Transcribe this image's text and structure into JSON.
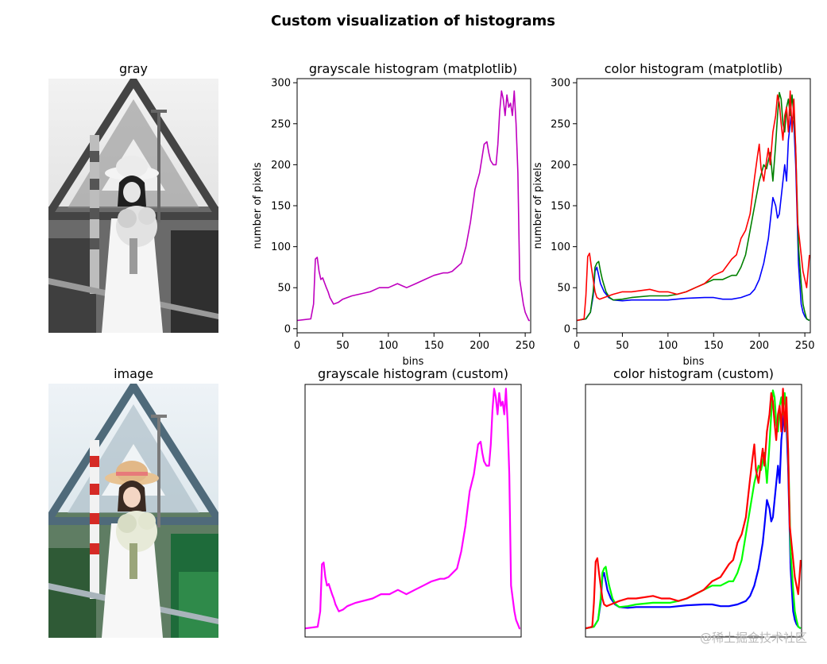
{
  "figure": {
    "suptitle": "Custom visualization of histograms",
    "watermark": "@稀土掘金技术社区"
  },
  "colors": {
    "gray_hist": "#bf00bf",
    "gray_hist_custom": "#ff00ff",
    "blue": "#0000ff",
    "green_mpl": "#008000",
    "green_custom": "#00ff00",
    "red": "#ff0000"
  },
  "panels": {
    "gray_image": {
      "title": "gray"
    },
    "color_image": {
      "title": "image"
    },
    "gray_hist": {
      "title": "grayscale histogram (matplotlib)"
    },
    "color_hist": {
      "title": "color histogram (matplotlib)"
    },
    "gray_hist_custom": {
      "title": "grayscale histogram (custom)"
    },
    "color_hist_custom": {
      "title": "color histogram (custom)"
    }
  },
  "chart_data": [
    {
      "type": "line",
      "title": "grayscale histogram (matplotlib)",
      "xlabel": "bins",
      "ylabel": "number of pixels",
      "xlim": [
        0,
        256
      ],
      "ylim": [
        -5,
        305
      ],
      "xticks": [
        0,
        50,
        100,
        150,
        200,
        250
      ],
      "yticks": [
        0,
        50,
        100,
        150,
        200,
        250,
        300
      ],
      "grid": false,
      "series": [
        {
          "color": "#bf00bf",
          "x": [
            0,
            15,
            18,
            20,
            22,
            24,
            26,
            28,
            30,
            32,
            34,
            36,
            40,
            45,
            50,
            60,
            80,
            90,
            100,
            110,
            120,
            130,
            140,
            150,
            160,
            165,
            170,
            175,
            180,
            185,
            190,
            195,
            200,
            205,
            208,
            210,
            212,
            215,
            218,
            220,
            222,
            224,
            226,
            228,
            230,
            232,
            234,
            236,
            238,
            240,
            242,
            244,
            246,
            248,
            250,
            252,
            254,
            255
          ],
          "y": [
            10,
            12,
            30,
            85,
            87,
            70,
            60,
            62,
            56,
            50,
            45,
            38,
            30,
            32,
            36,
            40,
            45,
            50,
            50,
            55,
            50,
            55,
            60,
            65,
            68,
            68,
            70,
            75,
            80,
            100,
            130,
            170,
            190,
            225,
            228,
            215,
            205,
            200,
            200,
            225,
            265,
            290,
            280,
            260,
            285,
            270,
            275,
            260,
            290,
            250,
            190,
            60,
            45,
            30,
            20,
            15,
            10,
            10
          ]
        }
      ]
    },
    {
      "type": "line",
      "title": "color histogram (matplotlib)",
      "xlabel": "bins",
      "ylabel": "number of pixels",
      "xlim": [
        0,
        256
      ],
      "ylim": [
        -5,
        305
      ],
      "xticks": [
        0,
        50,
        100,
        150,
        200,
        250
      ],
      "yticks": [
        0,
        50,
        100,
        150,
        200,
        250,
        300
      ],
      "grid": false,
      "series": [
        {
          "color": "#0000ff",
          "x": [
            0,
            10,
            15,
            18,
            20,
            22,
            24,
            26,
            30,
            35,
            40,
            50,
            60,
            80,
            100,
            120,
            140,
            150,
            160,
            170,
            180,
            190,
            195,
            200,
            205,
            210,
            212,
            215,
            218,
            220,
            222,
            225,
            228,
            230,
            232,
            235,
            238,
            240,
            243,
            246,
            248,
            250,
            252,
            255
          ],
          "y": [
            10,
            12,
            20,
            40,
            70,
            75,
            65,
            55,
            45,
            38,
            35,
            34,
            35,
            35,
            35,
            37,
            38,
            38,
            36,
            36,
            38,
            42,
            48,
            60,
            80,
            110,
            130,
            160,
            150,
            135,
            140,
            170,
            200,
            180,
            230,
            260,
            250,
            200,
            80,
            30,
            20,
            15,
            12,
            10
          ]
        },
        {
          "color": "#008000",
          "x": [
            0,
            10,
            15,
            18,
            20,
            22,
            24,
            26,
            28,
            32,
            36,
            40,
            50,
            60,
            80,
            100,
            110,
            120,
            130,
            140,
            150,
            160,
            170,
            175,
            180,
            185,
            190,
            195,
            200,
            205,
            208,
            210,
            212,
            215,
            218,
            220,
            222,
            224,
            226,
            228,
            230,
            232,
            234,
            236,
            238,
            240,
            243,
            246,
            248,
            250,
            252,
            255
          ],
          "y": [
            10,
            12,
            20,
            45,
            75,
            80,
            82,
            70,
            60,
            45,
            38,
            35,
            36,
            38,
            40,
            40,
            42,
            45,
            50,
            55,
            60,
            60,
            65,
            65,
            75,
            90,
            120,
            150,
            180,
            200,
            195,
            205,
            215,
            180,
            225,
            260,
            288,
            280,
            250,
            240,
            270,
            280,
            260,
            285,
            260,
            220,
            100,
            55,
            30,
            20,
            12,
            10
          ]
        },
        {
          "color": "#ff0000",
          "x": [
            0,
            8,
            10,
            12,
            14,
            16,
            18,
            20,
            22,
            25,
            30,
            35,
            40,
            50,
            60,
            80,
            90,
            100,
            110,
            120,
            130,
            140,
            150,
            160,
            170,
            175,
            180,
            185,
            190,
            195,
            198,
            200,
            202,
            205,
            208,
            210,
            212,
            215,
            218,
            220,
            222,
            224,
            226,
            228,
            230,
            232,
            234,
            236,
            238,
            240,
            242,
            245,
            248,
            250,
            252,
            255
          ],
          "y": [
            10,
            12,
            40,
            88,
            92,
            75,
            60,
            45,
            38,
            36,
            38,
            40,
            42,
            45,
            45,
            48,
            45,
            45,
            42,
            45,
            50,
            55,
            65,
            70,
            85,
            90,
            110,
            120,
            140,
            185,
            210,
            225,
            195,
            180,
            205,
            220,
            200,
            240,
            260,
            285,
            275,
            250,
            230,
            260,
            270,
            240,
            290,
            240,
            280,
            220,
            130,
            100,
            70,
            60,
            50,
            90
          ]
        }
      ]
    },
    {
      "type": "line",
      "title": "grayscale histogram (custom)",
      "xlim": [
        0,
        256
      ],
      "ylim": [
        0,
        295
      ],
      "grid": false,
      "series": [
        {
          "color": "#ff00ff",
          "x": [
            0,
            15,
            18,
            20,
            22,
            24,
            26,
            28,
            30,
            32,
            34,
            36,
            40,
            45,
            50,
            60,
            80,
            90,
            100,
            110,
            120,
            130,
            140,
            150,
            160,
            165,
            170,
            175,
            180,
            185,
            190,
            195,
            200,
            205,
            208,
            210,
            212,
            215,
            218,
            220,
            222,
            224,
            226,
            228,
            230,
            232,
            234,
            236,
            238,
            240,
            242,
            244,
            246,
            248,
            250,
            252,
            254,
            255
          ],
          "y": [
            10,
            12,
            30,
            85,
            87,
            70,
            60,
            62,
            56,
            50,
            45,
            38,
            30,
            32,
            36,
            40,
            45,
            50,
            50,
            55,
            50,
            55,
            60,
            65,
            68,
            68,
            70,
            75,
            80,
            100,
            130,
            170,
            190,
            225,
            228,
            215,
            205,
            200,
            200,
            225,
            265,
            290,
            280,
            260,
            285,
            270,
            275,
            260,
            290,
            250,
            190,
            60,
            45,
            30,
            20,
            15,
            10,
            10
          ]
        }
      ]
    },
    {
      "type": "line",
      "title": "color histogram (custom)",
      "xlim": [
        0,
        256
      ],
      "ylim": [
        0,
        295
      ],
      "grid": false,
      "series": [
        {
          "color": "#0000ff",
          "x": [
            0,
            10,
            15,
            18,
            20,
            22,
            24,
            26,
            30,
            35,
            40,
            50,
            60,
            80,
            100,
            120,
            140,
            150,
            160,
            170,
            180,
            190,
            195,
            200,
            205,
            210,
            212,
            215,
            218,
            220,
            222,
            225,
            228,
            230,
            232,
            235,
            238,
            240,
            243,
            246,
            248,
            250,
            252,
            255
          ],
          "y": [
            10,
            12,
            20,
            40,
            70,
            75,
            65,
            55,
            45,
            38,
            35,
            34,
            35,
            35,
            35,
            37,
            38,
            38,
            36,
            36,
            38,
            42,
            48,
            60,
            80,
            110,
            130,
            160,
            150,
            135,
            140,
            170,
            200,
            180,
            230,
            260,
            250,
            200,
            80,
            30,
            20,
            15,
            12,
            10
          ]
        },
        {
          "color": "#00ff00",
          "x": [
            0,
            10,
            15,
            18,
            20,
            22,
            24,
            26,
            28,
            32,
            36,
            40,
            50,
            60,
            80,
            100,
            110,
            120,
            130,
            140,
            150,
            160,
            170,
            175,
            180,
            185,
            190,
            195,
            200,
            205,
            208,
            210,
            212,
            215,
            218,
            220,
            222,
            224,
            226,
            228,
            230,
            232,
            234,
            236,
            238,
            240,
            243,
            246,
            248,
            250,
            252,
            255
          ],
          "y": [
            10,
            12,
            20,
            45,
            75,
            80,
            82,
            70,
            60,
            45,
            38,
            35,
            36,
            38,
            40,
            40,
            42,
            45,
            50,
            55,
            60,
            60,
            65,
            65,
            75,
            90,
            120,
            150,
            180,
            200,
            195,
            205,
            215,
            180,
            225,
            260,
            288,
            280,
            250,
            240,
            270,
            280,
            260,
            285,
            260,
            220,
            100,
            55,
            30,
            20,
            12,
            10
          ]
        },
        {
          "color": "#ff0000",
          "x": [
            0,
            8,
            10,
            12,
            14,
            16,
            18,
            20,
            22,
            25,
            30,
            35,
            40,
            50,
            60,
            80,
            90,
            100,
            110,
            120,
            130,
            140,
            150,
            160,
            170,
            175,
            180,
            185,
            190,
            195,
            198,
            200,
            202,
            205,
            208,
            210,
            212,
            215,
            218,
            220,
            222,
            224,
            226,
            228,
            230,
            232,
            234,
            236,
            238,
            240,
            242,
            245,
            248,
            250,
            252,
            255
          ],
          "y": [
            10,
            12,
            40,
            88,
            92,
            75,
            60,
            45,
            38,
            36,
            38,
            40,
            42,
            45,
            45,
            48,
            45,
            45,
            42,
            45,
            50,
            55,
            65,
            70,
            85,
            90,
            110,
            120,
            140,
            185,
            210,
            225,
            195,
            180,
            205,
            220,
            200,
            240,
            260,
            285,
            275,
            250,
            230,
            260,
            270,
            240,
            290,
            240,
            280,
            220,
            130,
            100,
            70,
            60,
            50,
            90
          ]
        }
      ]
    }
  ]
}
